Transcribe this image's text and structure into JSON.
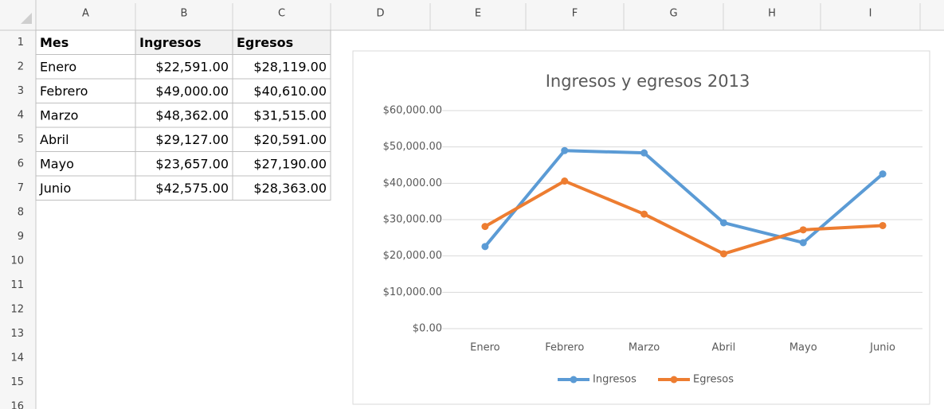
{
  "spreadsheet": {
    "columns": [
      "A",
      "B",
      "C",
      "D",
      "E",
      "F",
      "G",
      "H",
      "I"
    ],
    "rows": [
      1,
      2,
      3,
      4,
      5,
      6,
      7,
      8,
      9,
      10,
      11,
      12,
      13,
      14,
      15,
      16
    ],
    "cells": [
      [
        "Mes",
        "Ingresos",
        "Egresos"
      ],
      [
        "Enero",
        "$22,591.00",
        "$28,119.00"
      ],
      [
        "Febrero",
        "$49,000.00",
        "$40,610.00"
      ],
      [
        "Marzo",
        "$48,362.00",
        "$31,515.00"
      ],
      [
        "Abril",
        "$29,127.00",
        "$20,591.00"
      ],
      [
        "Mayo",
        "$23,657.00",
        "$27,190.00"
      ],
      [
        "Junio",
        "$42,575.00",
        "$28,363.00"
      ]
    ]
  },
  "chart_data": {
    "type": "line",
    "title": "Ingresos y egresos 2013",
    "categories": [
      "Enero",
      "Febrero",
      "Marzo",
      "Abril",
      "Mayo",
      "Junio"
    ],
    "series": [
      {
        "name": "Ingresos",
        "color": "#5b9bd5",
        "values": [
          22591,
          49000,
          48362,
          29127,
          23657,
          42575
        ]
      },
      {
        "name": "Egresos",
        "color": "#ed7d31",
        "values": [
          28119,
          40610,
          31515,
          20591,
          27190,
          28363
        ]
      }
    ],
    "ylim": [
      0,
      60000
    ],
    "yticks": [
      {
        "value": 0,
        "label": "$0.00"
      },
      {
        "value": 10000,
        "label": "$10,000.00"
      },
      {
        "value": 20000,
        "label": "$20,000.00"
      },
      {
        "value": 30000,
        "label": "$30,000.00"
      },
      {
        "value": 40000,
        "label": "$40,000.00"
      },
      {
        "value": 50000,
        "label": "$50,000.00"
      },
      {
        "value": 60000,
        "label": "$60,000.00"
      }
    ],
    "grid": true,
    "legend": "bottom"
  }
}
